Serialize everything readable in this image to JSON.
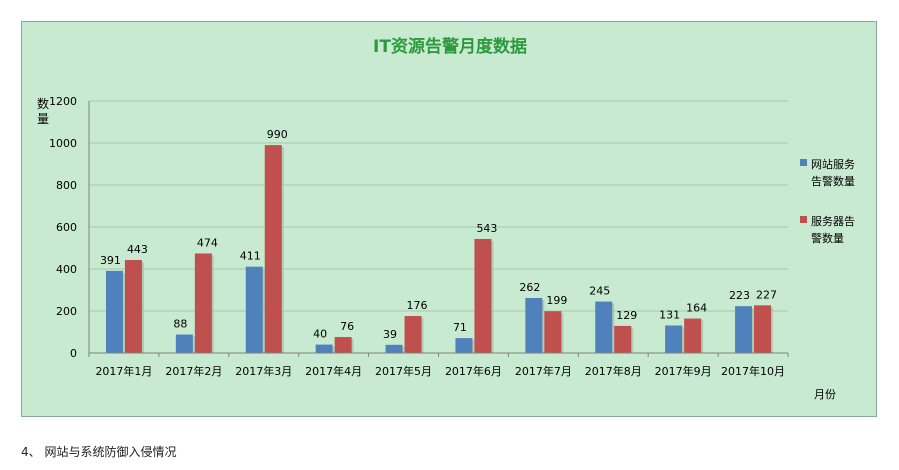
{
  "chart_data": {
    "type": "bar",
    "title": "IT资源告警月度数据",
    "ylabel": "数量",
    "xlabel": "月份",
    "categories": [
      "2017年1月",
      "2017年2月",
      "2017年3月",
      "2017年4月",
      "2017年5月",
      "2017年6月",
      "2017年7月",
      "2017年8月",
      "2017年9月",
      "2017年10月"
    ],
    "series": [
      {
        "name": "网站服务告警数量",
        "legend_lines": [
          "网站服务",
          "告警数量"
        ],
        "color": "#4f81bd",
        "values": [
          391,
          88,
          411,
          40,
          39,
          71,
          262,
          245,
          131,
          223
        ]
      },
      {
        "name": "服务器告警数量",
        "legend_lines": [
          "服务器告",
          "警数量"
        ],
        "color": "#c0504d",
        "values": [
          443,
          474,
          990,
          76,
          176,
          543,
          199,
          129,
          164,
          227
        ]
      }
    ],
    "yticks": [
      0,
      200,
      400,
      600,
      800,
      1000,
      1200
    ],
    "ylim": [
      0,
      1200
    ],
    "grid": true,
    "legend": "right",
    "colors": {
      "background": "#c8ead0",
      "title": "#2e9a3e",
      "grid": "#a9c7b0"
    }
  },
  "footer": {
    "text": "4、 网站与系统防御入侵情况"
  }
}
